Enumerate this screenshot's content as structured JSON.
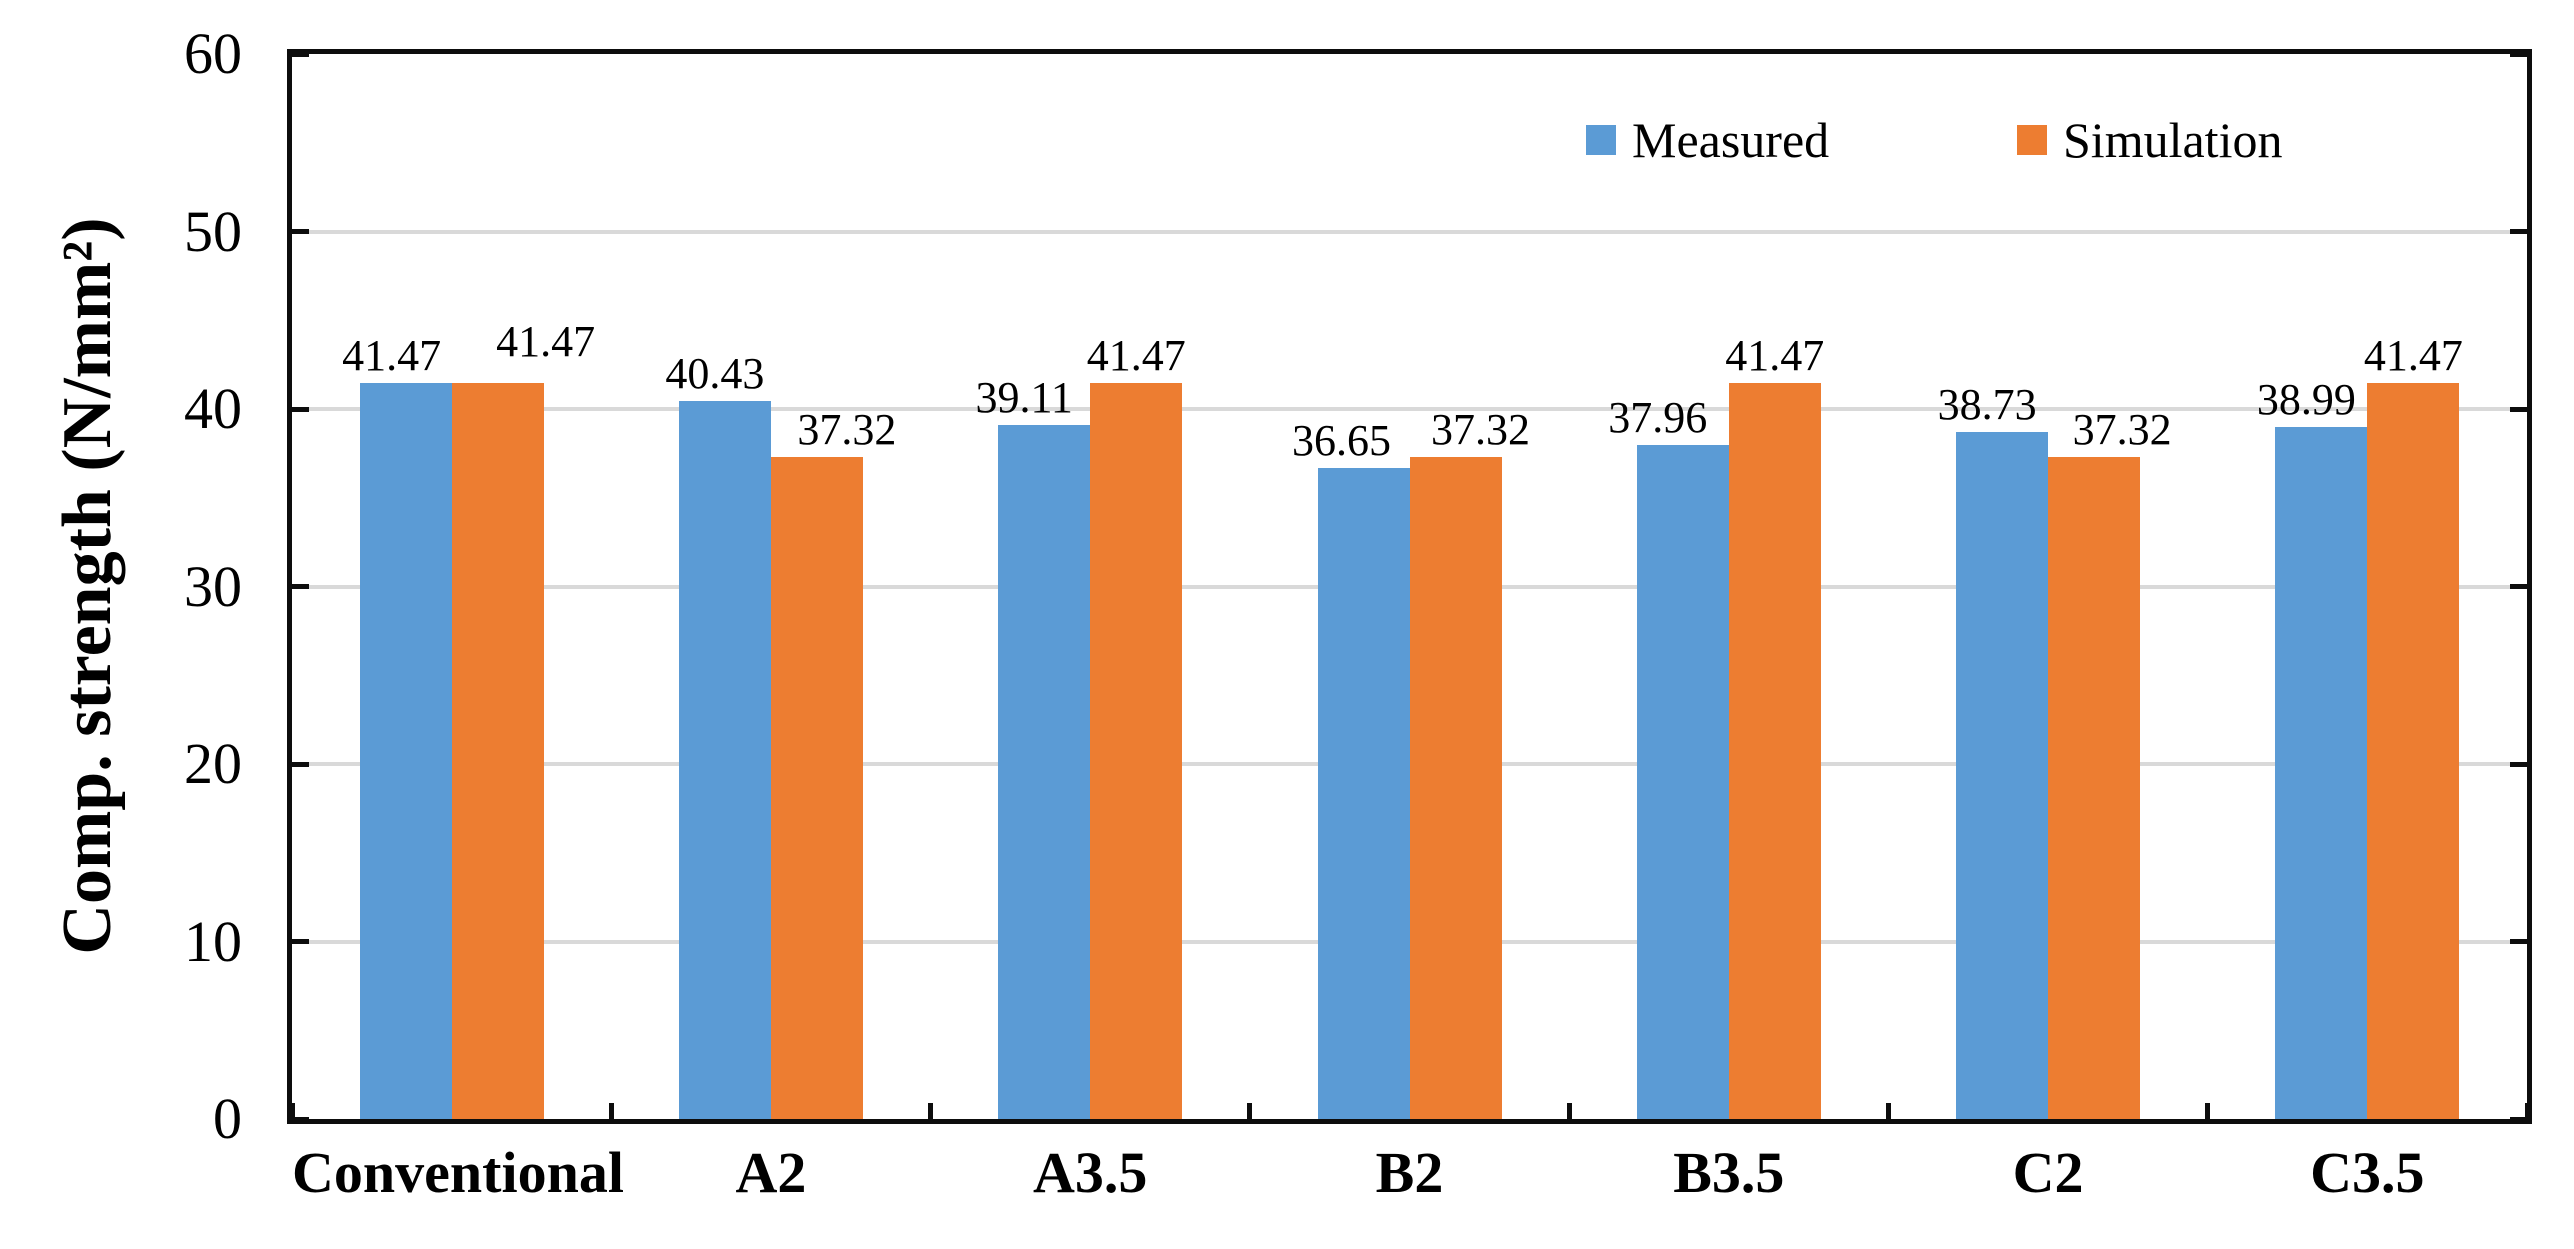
{
  "chart_data": {
    "type": "bar",
    "title": "",
    "ylabel": "Comp. strength (N/mm²)",
    "xlabel": "",
    "categories": [
      "Conventional",
      "A2",
      "A3.5",
      "B2",
      "B3.5",
      "C2",
      "C3.5"
    ],
    "series": [
      {
        "name": "Measured",
        "color": "#5B9BD5",
        "values": [
          41.47,
          40.43,
          39.11,
          36.65,
          37.96,
          38.73,
          38.99
        ]
      },
      {
        "name": "Simulation",
        "color": "#ED7D31",
        "values": [
          41.47,
          37.32,
          41.47,
          37.32,
          41.47,
          37.32,
          41.47
        ]
      }
    ],
    "data_labels": [
      "41.47",
      "41.47",
      "40.43",
      "37.32",
      "39.11",
      "41.47",
      "36.65",
      "37.32",
      "37.96",
      "41.47",
      "38.73",
      "37.32",
      "38.99",
      "41.47"
    ],
    "ylim": [
      0,
      60
    ],
    "yticks": [
      "0",
      "10",
      "20",
      "30",
      "40",
      "50",
      "60"
    ],
    "ytick_step": 10,
    "grid": true,
    "legend_position": "top-right",
    "colors": {
      "gridline": "#d9d9d9",
      "axis": "#0d0d0d",
      "background": "#ffffff",
      "text": "#000000"
    }
  }
}
